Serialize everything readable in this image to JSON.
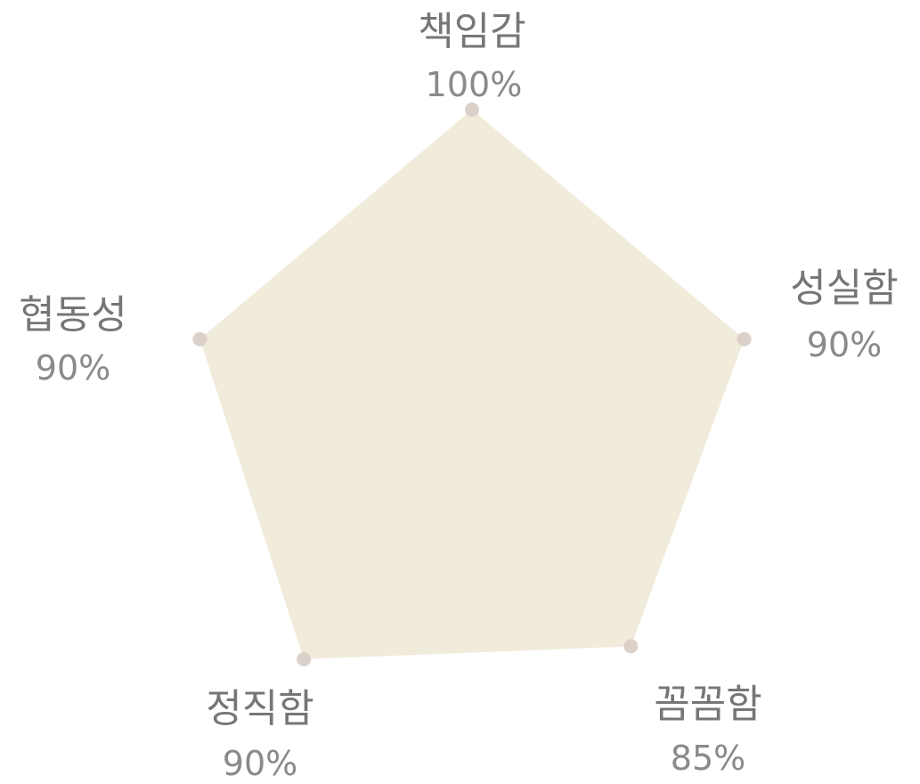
{
  "chart_data": {
    "type": "radar",
    "title": "",
    "categories": [
      "책임감",
      "성실함",
      "꼼꼼함",
      "정직함",
      "협동성"
    ],
    "values": [
      100,
      90,
      85,
      90,
      90
    ],
    "value_labels": [
      "100%",
      "90%",
      "85%",
      "90%",
      "90%"
    ],
    "range": [
      0,
      100
    ],
    "unit": "%",
    "grid": false,
    "legend": "none",
    "colors": {
      "fill": "#f0ebda",
      "point": "#dcd1c8",
      "label": "#767676",
      "value": "#8a8a8a"
    }
  }
}
